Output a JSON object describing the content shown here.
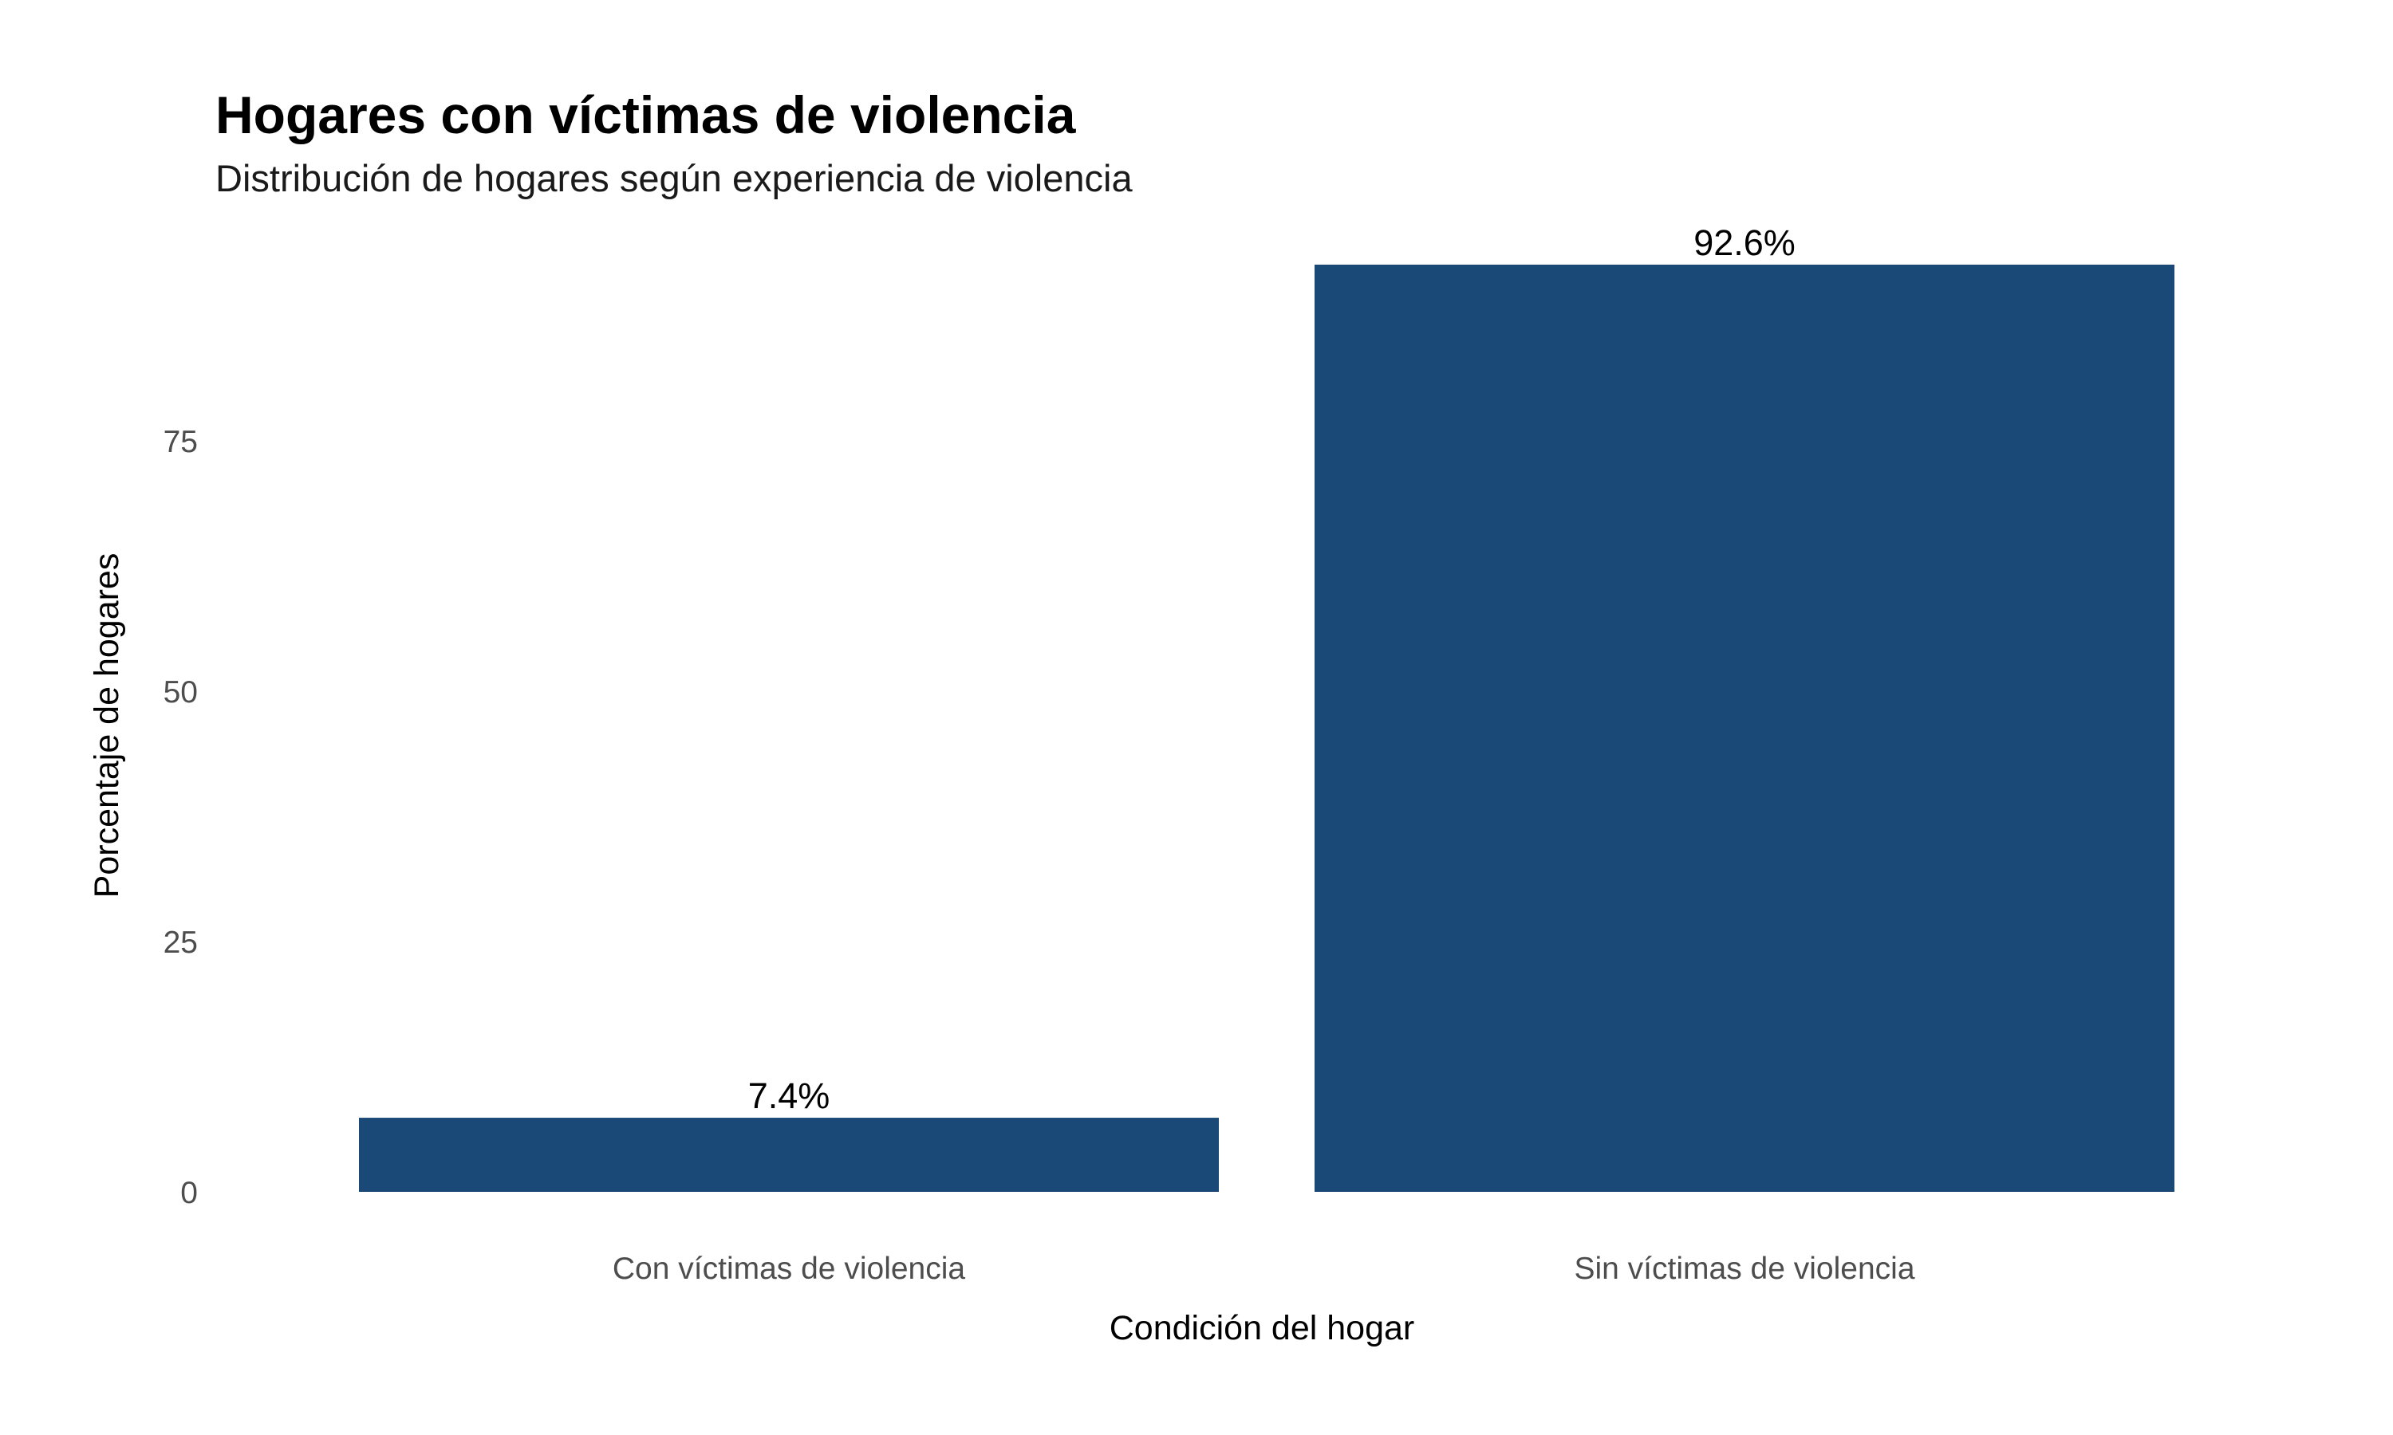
{
  "chart_data": {
    "type": "bar",
    "title": "Hogares con víctimas de violencia",
    "subtitle": "Distribución de hogares según experiencia de violencia",
    "xlabel": "Condición del hogar",
    "ylabel": "Porcentaje de hogares",
    "categories": [
      "Con víctimas de violencia",
      "Sin víctimas de violencia"
    ],
    "values": [
      7.4,
      92.6
    ],
    "data_labels": [
      "7.4%",
      "92.6%"
    ],
    "yticks": [
      0,
      25,
      50,
      75
    ],
    "ylim": [
      0,
      97.2
    ],
    "grid": false,
    "legend": "none",
    "bar_color": "#1a4877"
  }
}
